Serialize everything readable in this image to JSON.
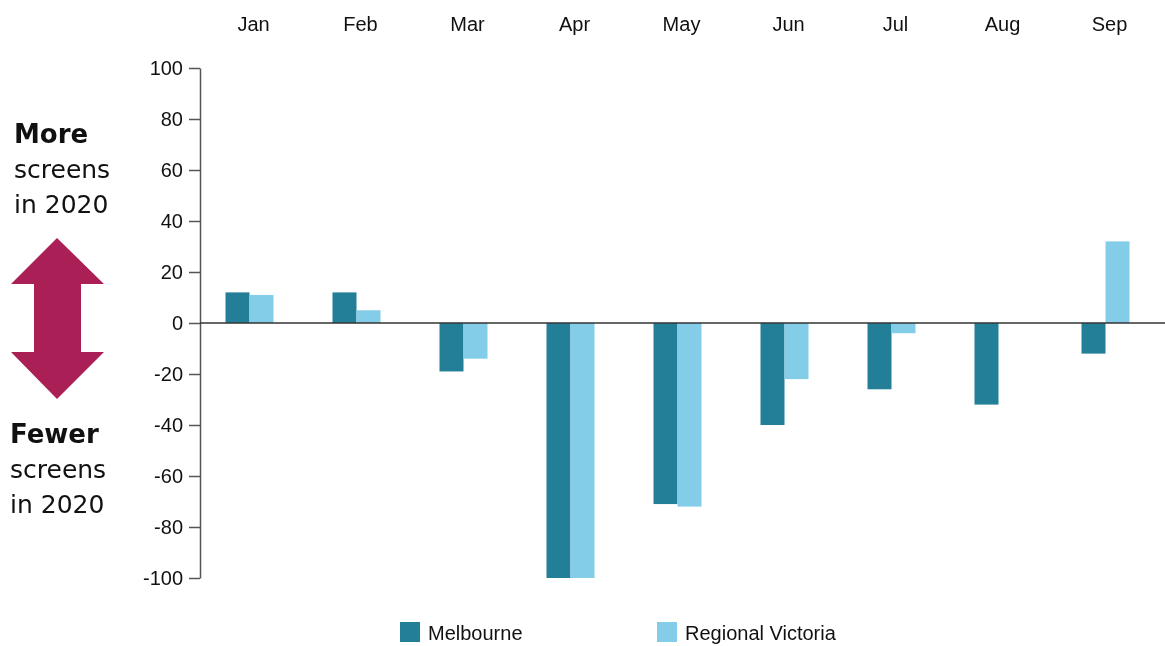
{
  "chart_data": {
    "type": "bar",
    "categories": [
      "Jan",
      "Feb",
      "Mar",
      "Apr",
      "May",
      "Jun",
      "Jul",
      "Aug",
      "Sep"
    ],
    "series": [
      {
        "name": "Melbourne",
        "color": "#237f97",
        "values": [
          12,
          12,
          -19,
          -100,
          -71,
          -40,
          -26,
          -32,
          -12
        ]
      },
      {
        "name": "Regional Victoria",
        "color": "#84cde8",
        "values": [
          11,
          5,
          -14,
          -100,
          -72,
          -22,
          -4,
          null,
          32
        ]
      }
    ],
    "ylim": [
      -100,
      100
    ],
    "yticks": [
      -100,
      -80,
      -60,
      -40,
      -20,
      0,
      20,
      40,
      60,
      80,
      100
    ],
    "annotations": [
      "More screens in 2020",
      "Fewer screens in 2020"
    ],
    "legend": "bottom"
  }
}
